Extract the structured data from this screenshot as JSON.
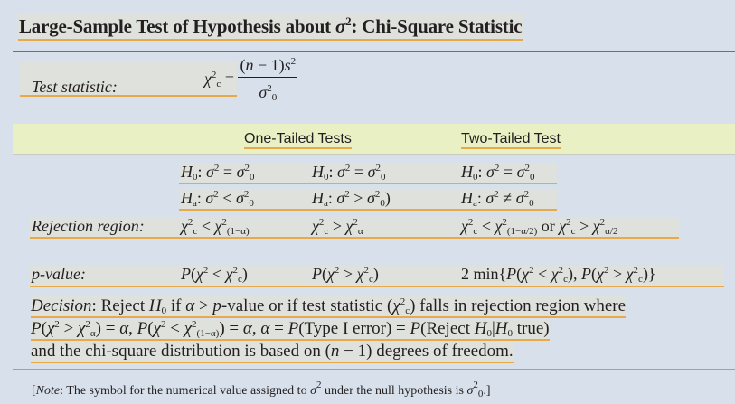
{
  "title": {
    "text": "Large-Sample Test of Hypothesis about ",
    "sym": "σ",
    "sup": "2",
    "rest": ": Chi-Square Statistic"
  },
  "test_statistic": {
    "label": "Test statistic:",
    "lhs": [
      {
        "t": "χ",
        "i": true,
        "sup": "2",
        "sub": "c"
      },
      " = "
    ],
    "numerator": [
      "(",
      {
        "t": "n",
        "i": true
      },
      " − 1)",
      {
        "t": "s",
        "i": true,
        "sup": "2"
      }
    ],
    "denominator": [
      {
        "t": "σ",
        "i": true,
        "sup": "2",
        "sub": "0"
      }
    ]
  },
  "columns": {
    "one_tailed": "One-Tailed Tests",
    "two_tailed": "Two-Tailed Test"
  },
  "rows": {
    "h0": [
      [
        {
          "t": "H",
          "i": true,
          "sub": "0"
        },
        ": ",
        {
          "t": "σ",
          "i": true,
          "sup": "2"
        },
        " = ",
        {
          "t": "σ",
          "i": true,
          "sup": "2",
          "sub": "0"
        }
      ],
      [
        {
          "t": "H",
          "i": true,
          "sub": "0"
        },
        ": ",
        {
          "t": "σ",
          "i": true,
          "sup": "2"
        },
        " = ",
        {
          "t": "σ",
          "i": true,
          "sup": "2",
          "sub": "0"
        }
      ],
      [
        {
          "t": "H",
          "i": true,
          "sub": "0"
        },
        ": ",
        {
          "t": "σ",
          "i": true,
          "sup": "2"
        },
        " = ",
        {
          "t": "σ",
          "i": true,
          "sup": "2",
          "sub": "0"
        }
      ]
    ],
    "ha": [
      [
        {
          "t": "H",
          "i": true,
          "sub": "a"
        },
        ": ",
        {
          "t": "σ",
          "i": true,
          "sup": "2"
        },
        " < ",
        {
          "t": "σ",
          "i": true,
          "sup": "2",
          "sub": "0"
        }
      ],
      [
        {
          "t": "H",
          "i": true,
          "sub": "a"
        },
        ": ",
        {
          "t": "σ",
          "i": true,
          "sup": "2"
        },
        " > ",
        {
          "t": "σ",
          "i": true,
          "sup": "2",
          "sub": "0"
        },
        ")"
      ],
      [
        {
          "t": "H",
          "i": true,
          "sub": "a"
        },
        ": ",
        {
          "t": "σ",
          "i": true,
          "sup": "2"
        },
        " ≠ ",
        {
          "t": "σ",
          "i": true,
          "sup": "2",
          "sub": "0"
        }
      ]
    ],
    "rejection_label": "Rejection region:",
    "rejection": [
      [
        {
          "t": "χ",
          "i": true,
          "sup": "2",
          "sub": "c"
        },
        " < ",
        {
          "t": "χ",
          "i": true,
          "sup": "2",
          "sub": "(1−α)"
        }
      ],
      [
        {
          "t": "χ",
          "i": true,
          "sup": "2",
          "sub": "c"
        },
        " > ",
        {
          "t": "χ",
          "i": true,
          "sup": "2",
          "sub": "α"
        }
      ],
      [
        {
          "t": "χ",
          "i": true,
          "sup": "2",
          "sub": "c"
        },
        " < ",
        {
          "t": "χ",
          "i": true,
          "sup": "2",
          "sub": "(1−α/2)"
        },
        " or ",
        {
          "t": "χ",
          "i": true,
          "sup": "2",
          "sub": "c"
        },
        " > ",
        {
          "t": "χ",
          "i": true,
          "sup": "2",
          "sub": "α/2"
        }
      ]
    ],
    "pvalue_label": "p-value:",
    "pvalue": [
      [
        {
          "t": "P",
          "i": true
        },
        "(",
        {
          "t": "χ",
          "i": true,
          "sup": "2"
        },
        " < ",
        {
          "t": "χ",
          "i": true,
          "sup": "2",
          "sub": "c"
        },
        ")"
      ],
      [
        {
          "t": "P",
          "i": true
        },
        "(",
        {
          "t": "χ",
          "i": true,
          "sup": "2"
        },
        " > ",
        {
          "t": "χ",
          "i": true,
          "sup": "2",
          "sub": "c"
        },
        ")"
      ],
      [
        "2 min{",
        {
          "t": "P",
          "i": true
        },
        "(",
        {
          "t": "χ",
          "i": true,
          "sup": "2"
        },
        " < ",
        {
          "t": "χ",
          "i": true,
          "sup": "2",
          "sub": "c"
        },
        "), ",
        {
          "t": "P",
          "i": true
        },
        "(",
        {
          "t": "χ",
          "i": true,
          "sup": "2"
        },
        " > ",
        {
          "t": "χ",
          "i": true,
          "sup": "2",
          "sub": "c"
        },
        ")}"
      ]
    ]
  },
  "decision": [
    [
      {
        "t": "Decision",
        "i": true
      },
      ": Reject ",
      {
        "t": "H",
        "i": true,
        "sub": "0"
      },
      " if ",
      {
        "t": "α",
        "i": true
      },
      " > ",
      {
        "t": "p",
        "i": true
      },
      "-value or if test statistic (",
      {
        "t": "χ",
        "i": true,
        "sup": "2",
        "sub": "c"
      },
      ") falls in rejection region where"
    ],
    [
      {
        "t": "P",
        "i": true
      },
      "(",
      {
        "t": "χ",
        "i": true,
        "sup": "2"
      },
      " > ",
      {
        "t": "χ",
        "i": true,
        "sup": "2",
        "sub": "α"
      },
      ") = ",
      {
        "t": "α",
        "i": true
      },
      ", ",
      {
        "t": "P",
        "i": true
      },
      "(",
      {
        "t": "χ",
        "i": true,
        "sup": "2"
      },
      " < ",
      {
        "t": "χ",
        "i": true,
        "sup": "2",
        "sub": "(1−α)"
      },
      ") = ",
      {
        "t": "α",
        "i": true
      },
      ", ",
      {
        "t": "α",
        "i": true
      },
      " = ",
      {
        "t": "P",
        "i": true
      },
      "(Type I error) = ",
      {
        "t": "P",
        "i": true
      },
      "(Reject ",
      {
        "t": "H",
        "i": true,
        "sub": "0"
      },
      "|",
      {
        "t": "H",
        "i": true,
        "sub": "0"
      },
      " true)"
    ],
    [
      "and the chi-square distribution is based on (",
      {
        "t": "n",
        "i": true
      },
      " − 1) degrees of freedom."
    ]
  ],
  "note": [
    "[",
    {
      "t": "Note",
      "i": true
    },
    ": The symbol for the numerical value assigned to ",
    {
      "t": "σ",
      "i": true,
      "sup": "2"
    },
    " under the null hypothesis is ",
    {
      "t": "σ",
      "i": true,
      "sup": "2",
      "sub": "0"
    },
    ".]"
  ],
  "colors": {
    "background": "#d8e1eb",
    "highlight": "#dfe1dd",
    "underline": "#eaa948",
    "header_band": "#e9f1c4"
  }
}
